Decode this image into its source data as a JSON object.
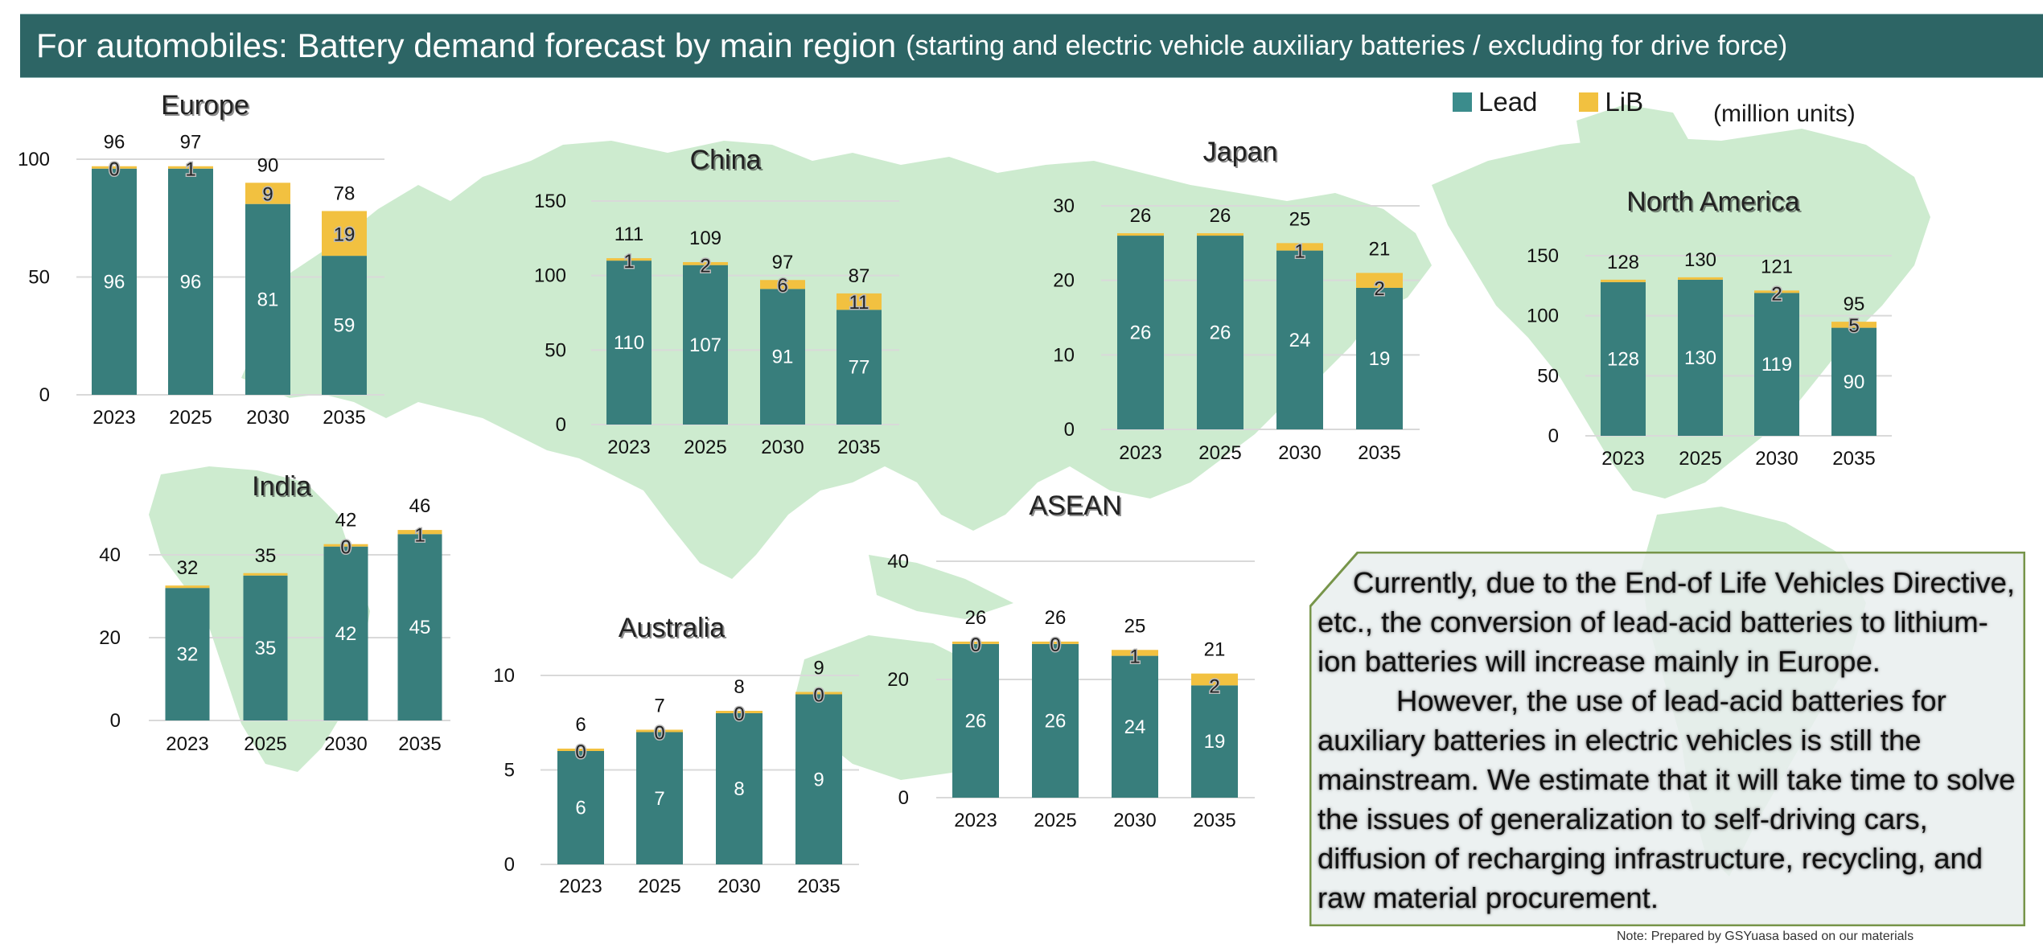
{
  "header": {
    "title": "For automobiles: Battery demand forecast by main region",
    "subtitle": "(starting and electric vehicle auxiliary batteries / excluding for drive force)"
  },
  "legend": {
    "items": [
      {
        "label": "Lead",
        "color": "#3b8c8c"
      },
      {
        "label": "LiB",
        "color": "#f2c140"
      }
    ],
    "units": "(million units)"
  },
  "colors": {
    "title_bar": "#2d6565",
    "lead": "#387e7c",
    "lib": "#f2c140",
    "map_land": "#cdebcf",
    "gridline": "#d9d9d9",
    "note_border": "#77954a",
    "note_fill": "#e9efee"
  },
  "note": {
    "paragraph1": "Currently, due to the End-of Life Vehicles Directive, etc., the conversion of lead-acid batteries to lithium-ion batteries will increase mainly in Europe.",
    "paragraph2": "However, the use of lead-acid batteries for auxiliary batteries in electric vehicles is still the mainstream. We estimate that it will take time to solve the issues of generalization to self-driving cars, diffusion of recharging infrastructure, recycling, and raw material procurement."
  },
  "footer": {
    "source_note": "Note: Prepared by GSYuasa based on our materials"
  },
  "chart_data": [
    {
      "type": "bar",
      "stacked": true,
      "title": "Europe",
      "categories": [
        "2023",
        "2025",
        "2030",
        "2035"
      ],
      "series": [
        {
          "name": "Lead",
          "values": [
            96,
            96,
            81,
            59
          ]
        },
        {
          "name": "LiB",
          "values": [
            0,
            1,
            9,
            19
          ]
        }
      ],
      "totals": [
        96,
        97,
        90,
        78
      ],
      "ylim": [
        0,
        100
      ],
      "yticks": [
        0,
        50,
        100
      ],
      "grid": true,
      "unit": "million units"
    },
    {
      "type": "bar",
      "stacked": true,
      "title": "China",
      "categories": [
        "2023",
        "2025",
        "2030",
        "2035"
      ],
      "series": [
        {
          "name": "Lead",
          "values": [
            110,
            107,
            91,
            77
          ]
        },
        {
          "name": "LiB",
          "values": [
            1,
            2,
            6,
            11
          ]
        }
      ],
      "totals": [
        111,
        109,
        97,
        87
      ],
      "ylim": [
        0,
        150
      ],
      "yticks": [
        0,
        50,
        100,
        150
      ],
      "grid": true,
      "unit": "million units"
    },
    {
      "type": "bar",
      "stacked": true,
      "title": "Japan",
      "categories": [
        "2023",
        "2025",
        "2030",
        "2035"
      ],
      "series": [
        {
          "name": "Lead",
          "values": [
            26,
            26,
            24,
            19
          ]
        },
        {
          "name": "LiB",
          "values": [
            0,
            0,
            1,
            2
          ]
        }
      ],
      "lib_labels_shown": [
        false,
        false,
        true,
        true
      ],
      "totals": [
        26,
        26,
        25,
        21
      ],
      "ylim": [
        0,
        30
      ],
      "yticks": [
        0,
        10,
        20,
        30
      ],
      "grid": true,
      "unit": "million units"
    },
    {
      "type": "bar",
      "stacked": true,
      "title": "North America",
      "categories": [
        "2023",
        "2025",
        "2030",
        "2035"
      ],
      "series": [
        {
          "name": "Lead",
          "values": [
            128,
            130,
            119,
            90
          ]
        },
        {
          "name": "LiB",
          "values": [
            0,
            0,
            2,
            5
          ]
        }
      ],
      "lib_labels_shown": [
        false,
        false,
        true,
        true
      ],
      "totals": [
        128,
        130,
        121,
        95
      ],
      "ylim": [
        0,
        150
      ],
      "yticks": [
        0,
        50,
        100,
        150
      ],
      "grid": true,
      "unit": "million units"
    },
    {
      "type": "bar",
      "stacked": true,
      "title": "India",
      "categories": [
        "2023",
        "2025",
        "2030",
        "2035"
      ],
      "series": [
        {
          "name": "Lead",
          "values": [
            32,
            35,
            42,
            45
          ]
        },
        {
          "name": "LiB",
          "values": [
            0,
            0,
            0,
            1
          ]
        }
      ],
      "lib_labels_shown": [
        false,
        false,
        true,
        true
      ],
      "totals": [
        32,
        35,
        42,
        46
      ],
      "ylim": [
        0,
        40
      ],
      "yticks": [
        0,
        20,
        40
      ],
      "grid": true,
      "unit": "million units"
    },
    {
      "type": "bar",
      "stacked": true,
      "title": "Australia",
      "categories": [
        "2023",
        "2025",
        "2030",
        "2035"
      ],
      "series": [
        {
          "name": "Lead",
          "values": [
            6,
            7,
            8,
            9
          ]
        },
        {
          "name": "LiB",
          "values": [
            0,
            0,
            0,
            0
          ]
        }
      ],
      "lib_labels_shown": [
        true,
        true,
        true,
        true
      ],
      "totals": [
        6,
        7,
        8,
        9
      ],
      "ylim": [
        0,
        10
      ],
      "yticks": [
        0,
        5,
        10
      ],
      "grid": true,
      "unit": "million units"
    },
    {
      "type": "bar",
      "stacked": true,
      "title": "ASEAN",
      "categories": [
        "2023",
        "2025",
        "2030",
        "2035"
      ],
      "series": [
        {
          "name": "Lead",
          "values": [
            26,
            26,
            24,
            19
          ]
        },
        {
          "name": "LiB",
          "values": [
            0,
            0,
            1,
            2
          ]
        }
      ],
      "lib_labels_shown": [
        true,
        true,
        true,
        true
      ],
      "totals": [
        26,
        26,
        25,
        21
      ],
      "ylim": [
        0,
        40
      ],
      "yticks": [
        0,
        20,
        40
      ],
      "grid": true,
      "unit": "million units"
    }
  ]
}
